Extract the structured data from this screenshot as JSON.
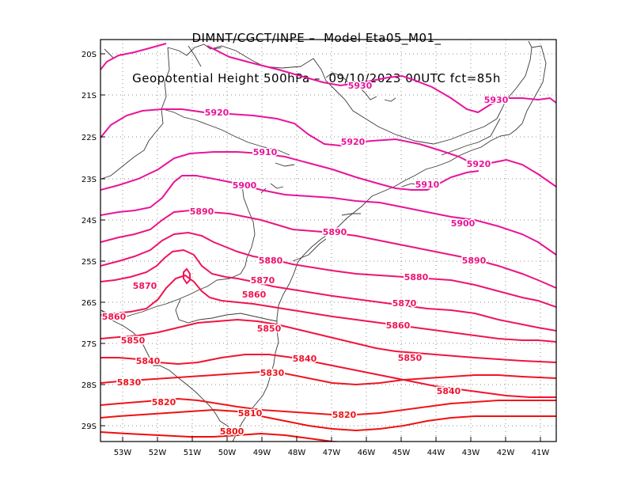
{
  "title": {
    "line1": "DIMNT/CGCT/INPE –  Model Eta05_M01_",
    "line2": "Geopotential Height 500hPa –  09/10/2023 00UTC fct=85h"
  },
  "axes": {
    "lat_ticks": [
      "20S",
      "21S",
      "22S",
      "23S",
      "24S",
      "25S",
      "26S",
      "27S",
      "28S",
      "29S"
    ],
    "lon_ticks": [
      "53W",
      "52W",
      "51W",
      "50W",
      "49W",
      "48W",
      "47W",
      "46W",
      "45W",
      "44W",
      "43W",
      "42W",
      "41W"
    ]
  },
  "contour_labels": [
    {
      "text": "5930",
      "color": "#e8149a"
    },
    {
      "text": "5930",
      "color": "#e8149a"
    },
    {
      "text": "5920",
      "color": "#e8149a"
    },
    {
      "text": "5920",
      "color": "#e8149a"
    },
    {
      "text": "5920",
      "color": "#e8149a"
    },
    {
      "text": "5910",
      "color": "#e8149a"
    },
    {
      "text": "5910",
      "color": "#e8149a"
    },
    {
      "text": "5900",
      "color": "#e8149a"
    },
    {
      "text": "5900",
      "color": "#e8149a"
    },
    {
      "text": "5890",
      "color": "#ec1480"
    },
    {
      "text": "5890",
      "color": "#ec1480"
    },
    {
      "text": "5890",
      "color": "#ec1480"
    },
    {
      "text": "5880",
      "color": "#ee1470"
    },
    {
      "text": "5880",
      "color": "#ee1470"
    },
    {
      "text": "5870",
      "color": "#f01460"
    },
    {
      "text": "5870",
      "color": "#f01460"
    },
    {
      "text": "5870",
      "color": "#f01460"
    },
    {
      "text": "5860",
      "color": "#f01450"
    },
    {
      "text": "5860",
      "color": "#f01450"
    },
    {
      "text": "5860",
      "color": "#f01450"
    },
    {
      "text": "5850",
      "color": "#f01440"
    },
    {
      "text": "5850",
      "color": "#f01440"
    },
    {
      "text": "5850",
      "color": "#f01440"
    },
    {
      "text": "5840",
      "color": "#f01430"
    },
    {
      "text": "5840",
      "color": "#f01430"
    },
    {
      "text": "5840",
      "color": "#f01430"
    },
    {
      "text": "5830",
      "color": "#f01420"
    },
    {
      "text": "5830",
      "color": "#f01420"
    },
    {
      "text": "5820",
      "color": "#f01418"
    },
    {
      "text": "5820",
      "color": "#f01418"
    },
    {
      "text": "5810",
      "color": "#f01010"
    },
    {
      "text": "5800",
      "color": "#f00c0c"
    }
  ]
}
